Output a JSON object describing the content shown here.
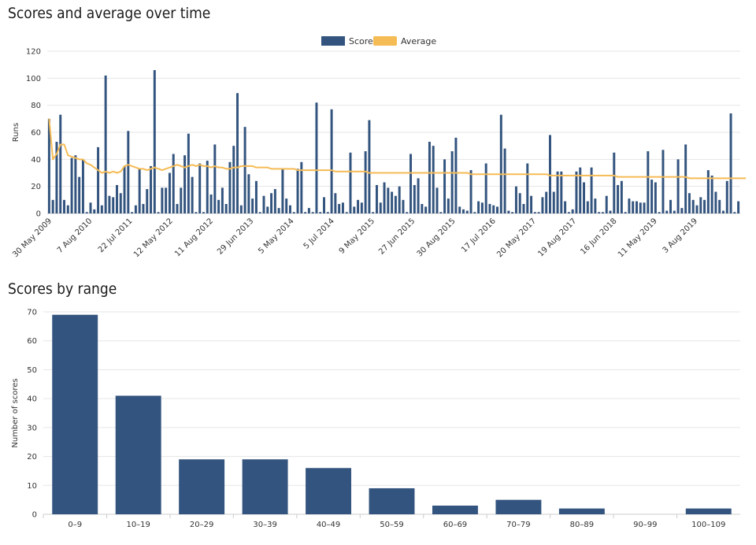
{
  "charts": {
    "timeline_title": "Scores and average over time",
    "range_title": "Scores by range"
  },
  "colors": {
    "bar": "#33547e",
    "average": "#f5bb55",
    "grid": "#e6e6e6",
    "axis": "#cccccc"
  },
  "chart_data": [
    {
      "type": "bar",
      "title": "Scores and average over time",
      "ylabel": "Runs",
      "xlabel": "",
      "ylim": [
        0,
        120
      ],
      "yticks": [
        0,
        20,
        40,
        60,
        80,
        100,
        120
      ],
      "grid": true,
      "legend_position": "top-center",
      "x_tick_labels": [
        "30 May 2009",
        "7 Aug 2010",
        "22 Jul 2011",
        "12 May 2012",
        "11 Aug 2012",
        "29 Jun 2013",
        "5 May 2014",
        "5 Jul 2014",
        "9 May 2015",
        "27 Jun 2015",
        "30 Aug 2015",
        "17 Jul 2016",
        "20 May 2017",
        "19 Aug 2017",
        "16 Jun 2018",
        "11 May 2019",
        "3 Aug 2019"
      ],
      "series": [
        {
          "name": "Score",
          "kind": "bar",
          "values": [
            70,
            10,
            53,
            73,
            10,
            6,
            41,
            43,
            27,
            40,
            1,
            8,
            3,
            49,
            6,
            102,
            13,
            12,
            21,
            15,
            35,
            61,
            1,
            6,
            33,
            7,
            18,
            35,
            106,
            1,
            19,
            19,
            30,
            44,
            7,
            19,
            43,
            59,
            27,
            1,
            37,
            1,
            39,
            14,
            51,
            10,
            19,
            7,
            38,
            50,
            89,
            6,
            64,
            29,
            11,
            24,
            1,
            13,
            5,
            15,
            18,
            4,
            33,
            11,
            6,
            1,
            33,
            38,
            1,
            4,
            1,
            82,
            1,
            12,
            1,
            77,
            15,
            7,
            8,
            1,
            45,
            5,
            10,
            8,
            46,
            69,
            1,
            21,
            8,
            23,
            19,
            16,
            13,
            20,
            10,
            1,
            44,
            21,
            26,
            7,
            5,
            53,
            50,
            19,
            1,
            40,
            11,
            46,
            56,
            5,
            3,
            2,
            32,
            1,
            9,
            8,
            37,
            7,
            6,
            5,
            73,
            48,
            2,
            1,
            20,
            15,
            7,
            37,
            13,
            1,
            1,
            12,
            16,
            58,
            16,
            31,
            31,
            9,
            1,
            3,
            31,
            34,
            23,
            9,
            34,
            11,
            1,
            1,
            13,
            2,
            45,
            21,
            24,
            1,
            11,
            9,
            9,
            8,
            8,
            46,
            25,
            23,
            1,
            47,
            2,
            10,
            2,
            40,
            4,
            51,
            15,
            10,
            6,
            12,
            10,
            32,
            28,
            16,
            10,
            2,
            24,
            74,
            1,
            9
          ]
        },
        {
          "name": "Average",
          "kind": "line",
          "values": [
            70,
            40,
            44,
            51,
            51,
            43,
            42,
            41,
            40,
            40,
            37,
            36,
            34,
            32,
            30,
            31,
            30,
            31,
            30,
            31,
            35,
            36,
            35,
            34,
            33,
            33,
            32,
            33,
            34,
            33,
            32,
            33,
            34,
            35,
            36,
            35,
            34,
            35,
            36,
            35,
            36,
            35,
            35,
            34,
            35,
            34,
            34,
            33,
            33,
            34,
            34,
            35,
            35,
            35,
            35,
            34,
            34,
            34,
            34,
            33,
            33,
            33,
            33,
            33,
            33,
            33,
            32,
            32,
            32,
            32,
            32,
            32,
            32,
            32,
            32,
            32,
            31,
            31,
            31,
            31,
            31,
            31,
            31,
            31,
            31,
            30,
            30,
            30,
            30,
            30,
            30,
            30,
            30,
            30,
            30,
            30,
            30,
            30,
            30,
            30,
            30,
            30,
            30,
            30,
            30,
            30,
            30,
            30,
            30,
            30,
            30,
            30,
            29,
            29,
            29,
            29,
            29,
            29,
            29,
            29,
            29,
            29,
            29,
            29,
            29,
            29,
            29,
            29,
            29,
            29,
            29,
            29,
            29,
            28,
            28,
            28,
            28,
            28,
            28,
            28,
            28,
            28,
            28,
            28,
            28,
            28,
            28,
            28,
            28,
            28,
            28,
            27,
            27,
            27,
            27,
            27,
            27,
            27,
            27,
            27,
            27,
            27,
            27,
            27,
            27,
            27,
            27,
            27,
            27,
            27,
            26,
            26,
            26,
            26,
            26,
            26,
            26,
            26,
            26,
            26,
            26,
            26,
            26,
            26,
            26,
            26
          ]
        }
      ]
    },
    {
      "type": "bar",
      "title": "Scores by range",
      "xlabel": "",
      "ylabel": "Number of scores",
      "ylim": [
        0,
        70
      ],
      "yticks": [
        0,
        10,
        20,
        30,
        40,
        50,
        60,
        70
      ],
      "grid": true,
      "categories": [
        "0–9",
        "10–19",
        "20–29",
        "30–39",
        "40–49",
        "50–59",
        "60–69",
        "70–79",
        "80–89",
        "90–99",
        "100–109"
      ],
      "values": [
        69,
        41,
        19,
        19,
        16,
        9,
        3,
        5,
        2,
        0,
        2
      ]
    }
  ]
}
